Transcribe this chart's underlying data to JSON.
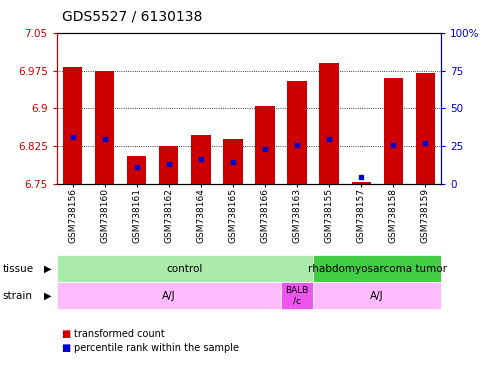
{
  "title": "GDS5527 / 6130138",
  "samples": [
    "GSM738156",
    "GSM738160",
    "GSM738161",
    "GSM738162",
    "GSM738164",
    "GSM738165",
    "GSM738166",
    "GSM738163",
    "GSM738155",
    "GSM738157",
    "GSM738158",
    "GSM738159"
  ],
  "red_values": [
    6.982,
    6.975,
    6.807,
    6.825,
    6.847,
    6.84,
    6.905,
    6.955,
    6.99,
    6.755,
    6.96,
    6.97
  ],
  "blue_values": [
    6.843,
    6.84,
    6.785,
    6.79,
    6.8,
    6.795,
    6.82,
    6.828,
    6.84,
    6.765,
    6.828,
    6.832
  ],
  "ymin": 6.75,
  "ymax": 7.05,
  "yticks_left": [
    6.75,
    6.825,
    6.9,
    6.975,
    7.05
  ],
  "yticks_right": [
    0,
    25,
    50,
    75,
    100
  ],
  "bar_color": "#cc0000",
  "dot_color": "#0000cc",
  "tissue_data": [
    {
      "text": "control",
      "start": 0,
      "end": 7,
      "color": "#aaeaaa"
    },
    {
      "text": "rhabdomyosarcoma tumor",
      "start": 8,
      "end": 11,
      "color": "#44cc44"
    }
  ],
  "strain_data": [
    {
      "text": "A/J",
      "start": 0,
      "end": 6,
      "color": "#ffbbff"
    },
    {
      "text": "BALB\n/c",
      "start": 7,
      "end": 7,
      "color": "#ee55ee"
    },
    {
      "text": "A/J",
      "start": 8,
      "end": 11,
      "color": "#ffbbff"
    }
  ],
  "legend_items": [
    {
      "color": "#cc0000",
      "label": "transformed count"
    },
    {
      "color": "#0000cc",
      "label": "percentile rank within the sample"
    }
  ],
  "left_tick_color": "#cc0000",
  "right_tick_color": "#0000cc"
}
